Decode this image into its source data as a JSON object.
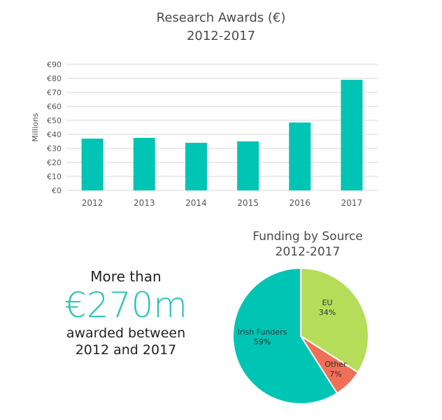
{
  "callout": {
    "prefix": "More than",
    "amount": "€270m",
    "line1": "awarded between",
    "line2": "2012 and 2017"
  },
  "colors": {
    "bar": "#00c4b4",
    "pie_eu": "#b5dd5a",
    "pie_other": "#ef6f57",
    "pie_irish": "#00c4b4",
    "accent_text": "#2ec4b6"
  },
  "chart_data": [
    {
      "type": "bar",
      "title": "Research Awards (€)",
      "subtitle": "2012-2017",
      "ylabel": "Millions",
      "xlabel": "",
      "categories": [
        "2012",
        "2013",
        "2014",
        "2015",
        "2016",
        "2017"
      ],
      "values": [
        37,
        37.5,
        34,
        35,
        48.5,
        79
      ],
      "ylim": [
        0,
        90
      ],
      "yticks": [
        0,
        10,
        20,
        30,
        40,
        50,
        60,
        70,
        80,
        90
      ],
      "ytick_labels": [
        "€0",
        "€10",
        "€20",
        "€30",
        "€40",
        "€50",
        "€60",
        "€70",
        "€80",
        "€90"
      ],
      "grid": true
    },
    {
      "type": "pie",
      "title": "Funding by Source",
      "subtitle": "2012-2017",
      "slices": [
        {
          "label": "EU",
          "value": 34,
          "pct_label": "34%"
        },
        {
          "label": "Other",
          "value": 7,
          "pct_label": "7%"
        },
        {
          "label": "Irish Funders",
          "value": 59,
          "pct_label": "59%"
        }
      ]
    }
  ]
}
